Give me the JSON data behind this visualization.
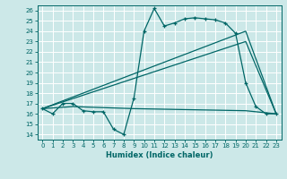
{
  "xlabel": "Humidex (Indice chaleur)",
  "bg_color": "#cce8e8",
  "line_color": "#006666",
  "grid_color": "#ffffff",
  "xlim": [
    -0.5,
    23.5
  ],
  "ylim": [
    13.5,
    26.5
  ],
  "yticks": [
    14,
    15,
    16,
    17,
    18,
    19,
    20,
    21,
    22,
    23,
    24,
    25,
    26
  ],
  "xticks": [
    0,
    1,
    2,
    3,
    4,
    5,
    6,
    7,
    8,
    9,
    10,
    11,
    12,
    13,
    14,
    15,
    16,
    17,
    18,
    19,
    20,
    21,
    22,
    23
  ],
  "line1_x": [
    0,
    1,
    2,
    3,
    4,
    5,
    6,
    7,
    8,
    9,
    10,
    11,
    12,
    13,
    14,
    15,
    16,
    17,
    18,
    19,
    20,
    21,
    22,
    23
  ],
  "line1_y": [
    16.5,
    16.0,
    17.0,
    17.0,
    16.3,
    16.2,
    16.2,
    14.5,
    14.0,
    17.5,
    24.0,
    26.2,
    24.5,
    24.8,
    25.2,
    25.3,
    25.2,
    25.1,
    24.8,
    23.8,
    19.0,
    16.7,
    16.0,
    16.0
  ],
  "line2_x": [
    0,
    20,
    23
  ],
  "line2_y": [
    16.5,
    24.0,
    16.0
  ],
  "line3_x": [
    0,
    20,
    23
  ],
  "line3_y": [
    16.5,
    23.0,
    16.0
  ],
  "line4_x": [
    0,
    3,
    9,
    20,
    23
  ],
  "line4_y": [
    16.5,
    16.7,
    16.5,
    16.3,
    16.0
  ]
}
